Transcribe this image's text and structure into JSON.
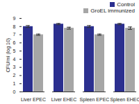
{
  "chart_data": {
    "type": "bar",
    "categories": [
      "Liver EPEC",
      "Liver EHEC",
      "Spleen EPEC",
      "Spleen EHEC"
    ],
    "series": [
      {
        "name": "Control",
        "color": "#2b2f8f",
        "values": [
          8.0,
          8.3,
          8.0,
          8.3
        ],
        "errors": [
          0.12,
          0.08,
          0.12,
          0.08
        ]
      },
      {
        "name": "GroEL immunized",
        "color": "#a6a6a6",
        "values": [
          7.0,
          7.8,
          7.0,
          7.8
        ],
        "errors": [
          0.08,
          0.12,
          0.08,
          0.15
        ]
      }
    ],
    "y_label": "CFU/ml (log 10)",
    "ylim": [
      0,
      9
    ],
    "yticks": [
      0,
      1,
      2,
      3,
      4,
      5,
      6,
      7,
      8,
      9
    ],
    "legend": "upper right",
    "grid": false
  }
}
